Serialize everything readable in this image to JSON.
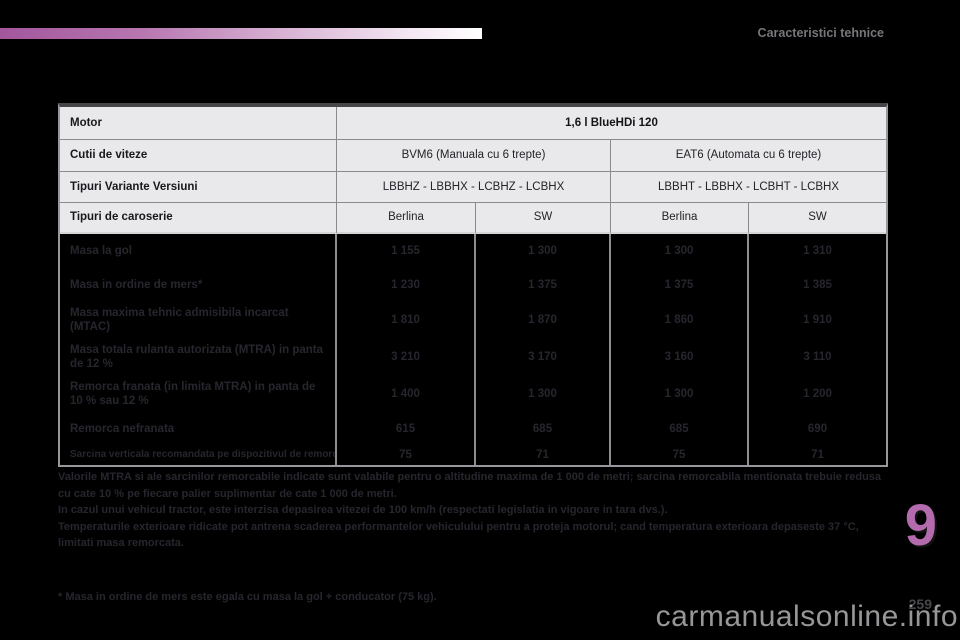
{
  "page": {
    "header_title": "Caracteristici tehnice",
    "chapter_number": "9",
    "page_number": "259",
    "watermark": "carmanualsonline.info",
    "accent_color": "#b36bad",
    "gradient_start_color": "#a2569c"
  },
  "table": {
    "motor": {
      "label": "Motor",
      "value": "1,6 l BlueHDi 120"
    },
    "gearbox": {
      "label": "Cutii de viteze",
      "values": [
        "BVM6 (Manuala cu 6 trepte)",
        "EAT6 (Automata cu 6 trepte)"
      ]
    },
    "variants": {
      "label": "Tipuri Variante Versiuni",
      "values": [
        "LBBHZ - LBBHX - LCBHZ - LCBHX",
        "LBBHT - LBBHX - LCBHT - LCBHX"
      ]
    },
    "body_types": {
      "label": "Tipuri de caroserie",
      "values": [
        "Berlina",
        "SW",
        "Berlina",
        "SW"
      ]
    },
    "data_rows": [
      {
        "label": "Masa la gol",
        "values": [
          "1 155",
          "1 300",
          "1 300",
          "1 310"
        ]
      },
      {
        "label": "Masa in ordine de mers*",
        "values": [
          "1 230",
          "1 375",
          "1 375",
          "1 385"
        ]
      },
      {
        "label": "Masa maxima tehnic admisibila incarcat (MTAC)",
        "values": [
          "1 810",
          "1 870",
          "1 860",
          "1 910"
        ]
      },
      {
        "label": "Masa totala rulanta autorizata (MTRA) in panta de 12 %",
        "values": [
          "3 210",
          "3 170",
          "3 160",
          "3 110"
        ]
      },
      {
        "label": "Remorca franata (in limita MTRA) in panta de 10 % sau 12 %",
        "values": [
          "1 400",
          "1 300",
          "1 300",
          "1 200"
        ]
      },
      {
        "label": "Remorca nefranata",
        "values": [
          "615",
          "685",
          "685",
          "690"
        ]
      },
      {
        "label": "Sarcina verticala recomandata pe dispozitivul de remorcare",
        "values": [
          "75",
          "71",
          "75",
          "71"
        ]
      }
    ]
  },
  "notes": {
    "p1": "Valorile MTRA si ale sarcinilor remorcabile indicate sunt valabile pentru o altitudine maxima de 1 000 de metri; sarcina remorcabila mentionata trebuie redusa cu cate 10 % pe fiecare palier suplimentar de cate 1 000 de metri.",
    "p2": "In cazul unui vehicul tractor, este interzisa depasirea vitezei de 100 km/h (respectati legislatia in vigoare in tara dvs.).",
    "p3": "Temperaturile exterioare ridicate pot antrena scaderea performantelor vehiculului pentru a proteja motorul; cand temperatura exterioara depaseste 37 °C, limitati masa remorcata.",
    "star_note": "* Masa in ordine de mers este egala cu masa la gol + conducator (75 kg)."
  }
}
